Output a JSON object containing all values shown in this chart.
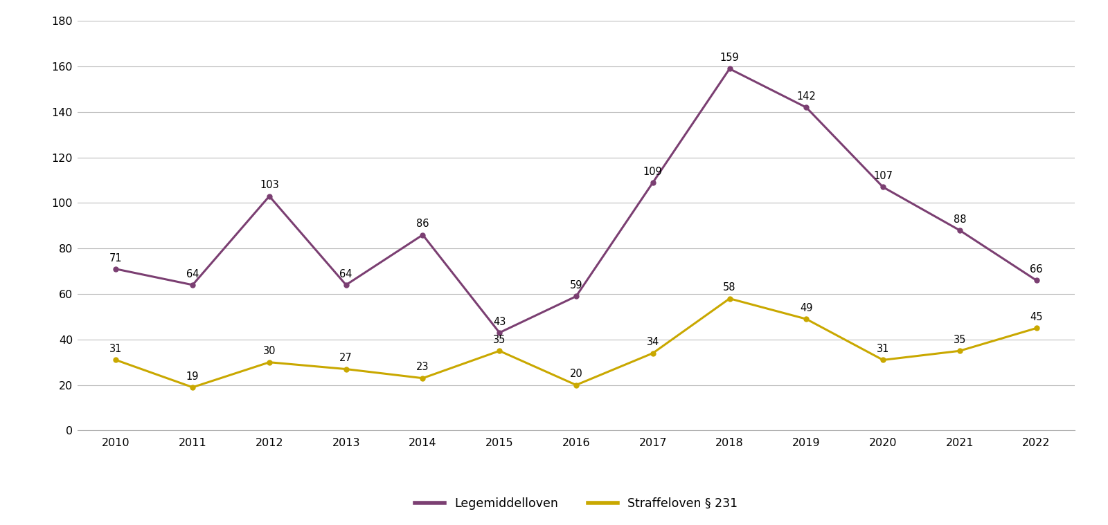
{
  "years": [
    2010,
    2011,
    2012,
    2013,
    2014,
    2015,
    2016,
    2017,
    2018,
    2019,
    2020,
    2021,
    2022
  ],
  "legemiddelloven": [
    71,
    64,
    103,
    64,
    86,
    43,
    59,
    109,
    159,
    142,
    107,
    88,
    66
  ],
  "straffeloven": [
    31,
    19,
    30,
    27,
    23,
    35,
    20,
    34,
    58,
    49,
    31,
    35,
    45
  ],
  "legemiddelloven_color": "#7b3f72",
  "straffeloven_color": "#c9a800",
  "ylim": [
    0,
    180
  ],
  "yticks": [
    0,
    20,
    40,
    60,
    80,
    100,
    120,
    140,
    160,
    180
  ],
  "legend_label_1": "Legemiddelloven",
  "legend_label_2": "Straffeloven § 231",
  "background_color": "#ffffff",
  "grid_color": "#bbbbbb",
  "line_width": 2.2,
  "marker": "o",
  "marker_size": 5,
  "label_fontsize": 10.5,
  "tick_fontsize": 11.5,
  "legend_fontsize": 12.5
}
